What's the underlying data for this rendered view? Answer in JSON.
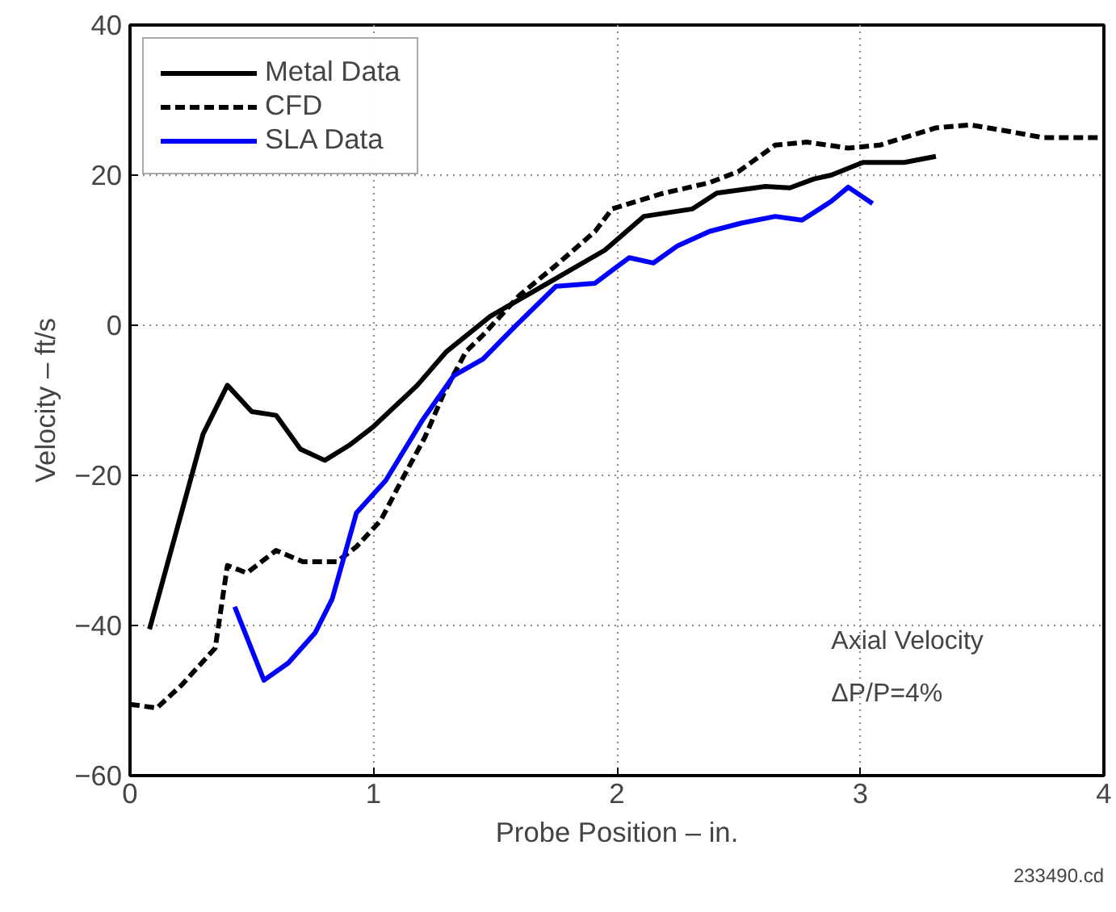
{
  "chart_data": {
    "type": "line",
    "xlabel": "Probe Position – in.",
    "ylabel": "Velocity – ft/s",
    "xlim": [
      0,
      4
    ],
    "ylim": [
      -60,
      40
    ],
    "xticks": [
      0,
      1,
      2,
      3,
      4
    ],
    "yticks": [
      -60,
      -40,
      -20,
      0,
      20,
      40
    ],
    "grid": true,
    "legend": "top left",
    "series": [
      {
        "name": "Metal Data",
        "color": "#000000",
        "line_style": "solid",
        "x": [
          0.08,
          0.3,
          0.4,
          0.5,
          0.6,
          0.7,
          0.8,
          0.9,
          1.0,
          1.18,
          1.3,
          1.48,
          1.71,
          1.95,
          2.11,
          2.31,
          2.41,
          2.61,
          2.71,
          2.81,
          2.88,
          3.01,
          3.18,
          3.31
        ],
        "values": [
          -40.5,
          -14.5,
          -8,
          -11.5,
          -12,
          -16.5,
          -18,
          -16,
          -13.5,
          -8,
          -3.5,
          1.2,
          5.5,
          10,
          14.5,
          15.5,
          17.6,
          18.5,
          18.3,
          19.5,
          20,
          21.7,
          21.7,
          22.5
        ]
      },
      {
        "name": "CFD",
        "color": "#000000",
        "line_style": "dashed",
        "x": [
          0,
          0.11,
          0.21,
          0.35,
          0.4,
          0.48,
          0.6,
          0.71,
          0.85,
          0.93,
          1.03,
          1.11,
          1.21,
          1.29,
          1.38,
          1.45,
          1.6,
          1.75,
          1.91,
          1.98,
          2.18,
          2.38,
          2.5,
          2.65,
          2.78,
          2.95,
          3.08,
          3.31,
          3.45,
          3.58,
          3.75,
          3.98
        ],
        "values": [
          -50.5,
          -51,
          -48,
          -43,
          -32,
          -33,
          -30,
          -31.5,
          -31.5,
          -29.5,
          -26,
          -21,
          -15,
          -9,
          -3.5,
          -1.3,
          4,
          8,
          12.5,
          15.5,
          17.5,
          19,
          20.5,
          24,
          24.4,
          23.6,
          24,
          26.3,
          26.7,
          26,
          25,
          25
        ]
      },
      {
        "name": "SLA Data",
        "color": "#0000ff",
        "line_style": "solid",
        "x": [
          0.43,
          0.55,
          0.65,
          0.76,
          0.83,
          0.93,
          1.05,
          1.2,
          1.33,
          1.45,
          1.58,
          1.75,
          1.91,
          2.05,
          2.15,
          2.25,
          2.38,
          2.51,
          2.65,
          2.76,
          2.88,
          2.95,
          3.05
        ],
        "values": [
          -37.5,
          -47.3,
          -45,
          -41,
          -36.5,
          -25,
          -20.7,
          -12.7,
          -6.7,
          -4.5,
          -0.2,
          5.2,
          5.6,
          9,
          8.3,
          10.6,
          12.5,
          13.6,
          14.5,
          14,
          16.5,
          18.4,
          16.2
        ]
      }
    ],
    "annotations": [
      "Axial Velocity",
      "ΔP/P=4%",
      "233490.cd"
    ]
  }
}
